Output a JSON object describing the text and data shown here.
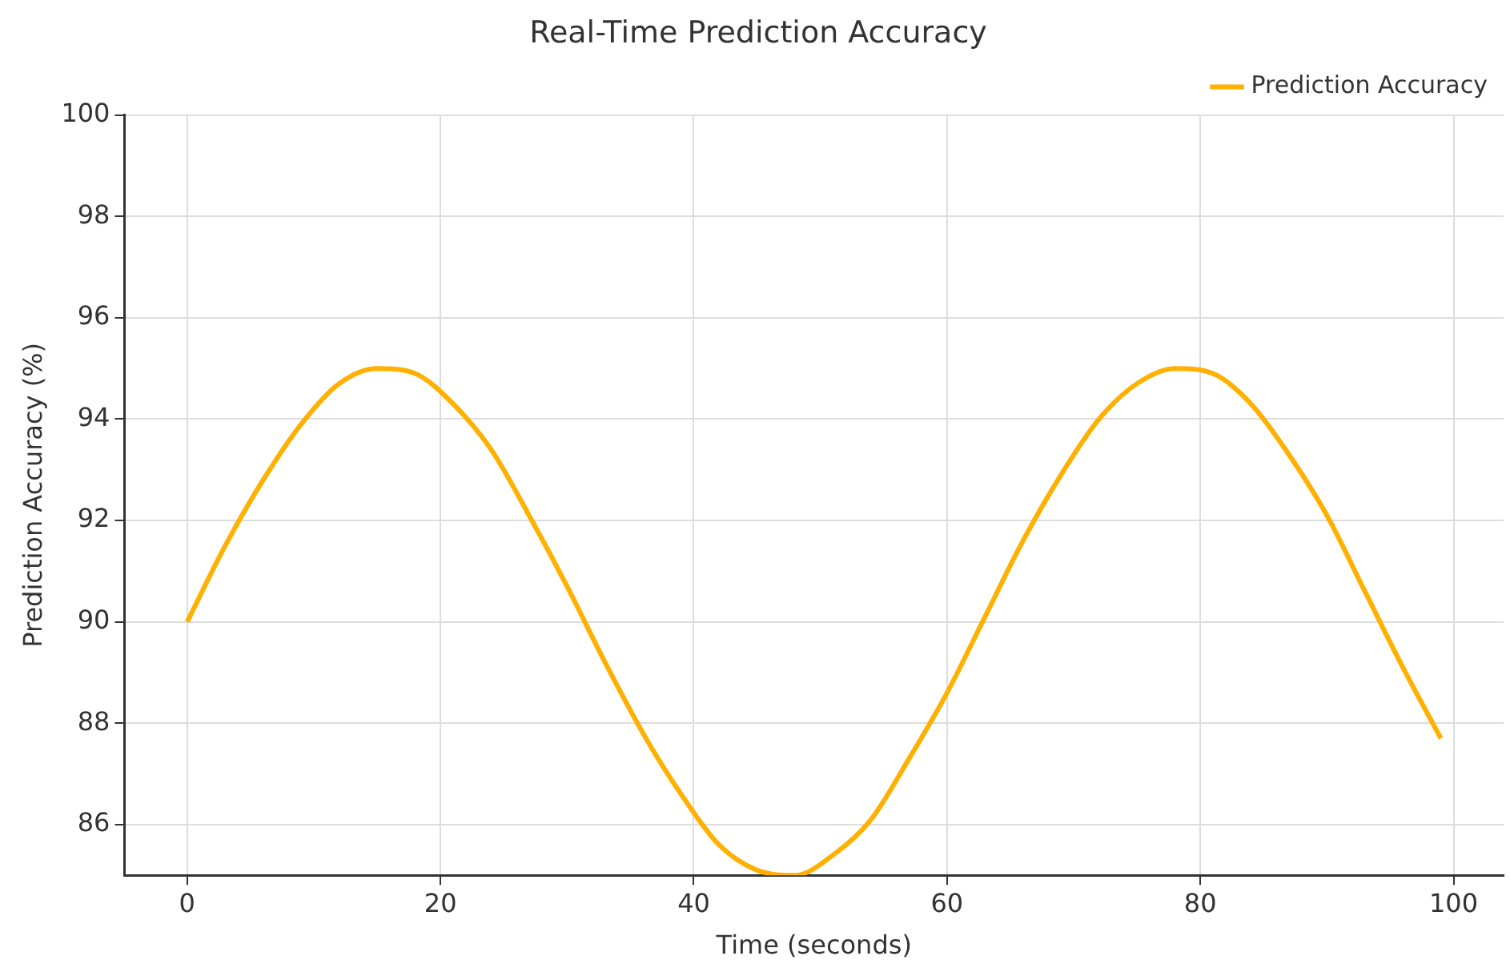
{
  "chart_data": {
    "type": "line",
    "title": "Real-Time Prediction Accuracy",
    "xlabel": "Time (seconds)",
    "ylabel": "Prediction Accuracy (%)",
    "x": [
      0,
      3,
      6,
      9,
      12,
      15,
      18,
      21,
      24,
      27,
      30,
      33,
      36,
      39,
      42,
      45,
      48,
      51,
      54,
      57,
      60,
      63,
      66,
      69,
      72,
      75,
      78,
      81,
      84,
      87,
      90,
      93,
      96,
      99
    ],
    "series": [
      {
        "name": "Prediction Accuracy",
        "color": "#ffb000",
        "values": [
          90.0,
          91.5,
          92.8,
          93.9,
          94.7,
          95.0,
          94.9,
          94.3,
          93.4,
          92.1,
          90.7,
          89.2,
          87.8,
          86.6,
          85.6,
          85.1,
          85.0,
          85.4,
          86.1,
          87.3,
          88.6,
          90.1,
          91.6,
          92.9,
          94.0,
          94.7,
          95.0,
          94.9,
          94.3,
          93.3,
          92.1,
          90.6,
          89.1,
          87.7
        ]
      }
    ],
    "xlim": [
      -4.95,
      103.95
    ],
    "xticks": [
      0,
      20,
      40,
      60,
      80,
      100
    ],
    "ylim": [
      85,
      100
    ],
    "yticks": [
      86,
      88,
      90,
      92,
      94,
      96,
      98,
      100
    ],
    "grid": true,
    "legend": "top right",
    "marker": "none",
    "line_style": "solid"
  }
}
